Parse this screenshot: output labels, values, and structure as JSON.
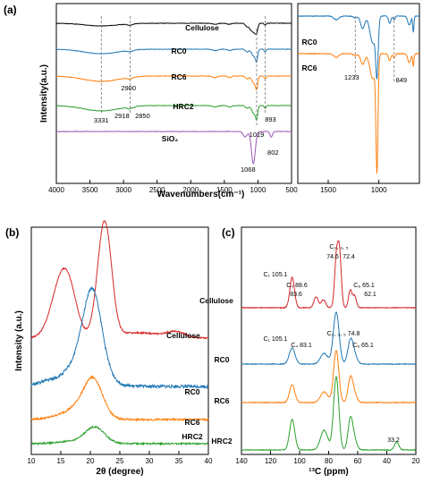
{
  "figure": {
    "panels": [
      {
        "id": "a",
        "label": "(a)",
        "xlabel": "Wavenumbers(cm⁻¹)",
        "ylabel": "Intensity(a.u.)",
        "series_labels": [
          "Cellulose",
          "RC0",
          "RC6",
          "HRC2",
          "SiO₂"
        ],
        "inset_series_labels": [
          "RC0",
          "RC6"
        ]
      },
      {
        "id": "b",
        "label": "(b)",
        "xlabel": "2θ (degree)",
        "ylabel": "Intensity (a.u.)",
        "series_labels": [
          "Cellulose",
          "RC0",
          "RC6",
          "HRC2"
        ]
      },
      {
        "id": "c",
        "label": "(c)",
        "xlabel": "¹³C (ppm)",
        "ylabel": "",
        "series_labels": [
          "Cellulose",
          "RC0",
          "RC6",
          "HRC2"
        ]
      }
    ]
  },
  "chart_data": [
    {
      "type": "line",
      "panel": "(a)",
      "xlabel": "Wavenumbers(cm⁻¹)",
      "ylabel": "Intensity(a.u.)",
      "xlim": [
        4000,
        500
      ],
      "xticks": [
        4000,
        3500,
        3000,
        2500,
        2000,
        1500,
        1000,
        500
      ],
      "inset": {
        "xlim": [
          1800,
          600
        ],
        "xticks": [
          1500,
          1000
        ],
        "series": [
          "RC0",
          "RC6"
        ],
        "annotations": [
          {
            "text": "1233",
            "x": 1233
          },
          {
            "text": "849",
            "x": 849
          }
        ]
      },
      "series": [
        {
          "name": "Cellulose",
          "color": "#000000",
          "bands": [
            3331,
            2900,
            1019
          ]
        },
        {
          "name": "RC0",
          "color": "#1f77b4",
          "bands": [
            3331,
            2900,
            1019,
            893
          ]
        },
        {
          "name": "RC6",
          "color": "#ff7f0e",
          "bands": [
            3331,
            2900,
            1019,
            893
          ]
        },
        {
          "name": "HRC2",
          "color": "#2ca02c",
          "bands": [
            3331,
            2918,
            2850,
            1019,
            893
          ]
        },
        {
          "name": "SiO₂",
          "color": "#9b59b6",
          "bands": [
            1068,
            802
          ]
        }
      ],
      "annotations": [
        {
          "text": "3331",
          "x": 3331
        },
        {
          "text": "2900",
          "x": 2900
        },
        {
          "text": "2918",
          "x": 2918
        },
        {
          "text": "2850",
          "x": 2850
        },
        {
          "text": "1019",
          "x": 1019
        },
        {
          "text": "893",
          "x": 893
        },
        {
          "text": "1068",
          "x": 1068
        },
        {
          "text": "802",
          "x": 802
        }
      ]
    },
    {
      "type": "line",
      "panel": "(b)",
      "xlabel": "2θ (degree)",
      "ylabel": "Intensity (a.u.)",
      "xlim": [
        10,
        40
      ],
      "xticks": [
        10,
        15,
        20,
        25,
        30,
        35,
        40
      ],
      "series": [
        {
          "name": "Cellulose",
          "color": "#d62728",
          "peaks": [
            15.0,
            22.6,
            34.5
          ]
        },
        {
          "name": "RC0",
          "color": "#1f77b4",
          "peaks": [
            20.4
          ]
        },
        {
          "name": "RC6",
          "color": "#ff7f0e",
          "peaks": [
            20.6
          ]
        },
        {
          "name": "HRC2",
          "color": "#2ca02c",
          "peaks": [
            20.8
          ]
        }
      ]
    },
    {
      "type": "line",
      "panel": "(c)",
      "xlabel": "¹³C (ppm)",
      "xlim": [
        140,
        20
      ],
      "xticks": [
        140,
        120,
        100,
        80,
        60,
        40,
        20
      ],
      "series": [
        {
          "name": "Cellulose",
          "color": "#d62728",
          "peaks": [
            105.1,
            88.6,
            83.6,
            74.6,
            72.4,
            65.1,
            62.1
          ]
        },
        {
          "name": "RC0",
          "color": "#1f77b4",
          "peaks": [
            105.1,
            83.1,
            74.8,
            65.1
          ]
        },
        {
          "name": "RC6",
          "color": "#ff7f0e",
          "peaks": [
            105.1,
            83.1,
            74.8,
            65.1
          ]
        },
        {
          "name": "HRC2",
          "color": "#2ca02c",
          "peaks": [
            105.1,
            83.1,
            74.8,
            65.1,
            33.2
          ]
        }
      ],
      "annotations": [
        {
          "text": "C₁ 105.1",
          "x": 105.1,
          "series": "Cellulose"
        },
        {
          "text": "C₄ 88.6",
          "x": 88.6,
          "series": "Cellulose"
        },
        {
          "text": "83.6",
          "x": 83.6,
          "series": "Cellulose"
        },
        {
          "text": "C₂, ₃, ₅",
          "x": 74.0,
          "series": "Cellulose"
        },
        {
          "text": "74.6",
          "x": 74.6,
          "series": "Cellulose"
        },
        {
          "text": "72.4",
          "x": 72.4,
          "series": "Cellulose"
        },
        {
          "text": "C₆ 65.1",
          "x": 65.1,
          "series": "Cellulose"
        },
        {
          "text": "62.1",
          "x": 62.1,
          "series": "Cellulose"
        },
        {
          "text": "C₂, ₃, ₅ 74.8",
          "x": 74.8,
          "series": "RC0"
        },
        {
          "text": "C₁ 105.1",
          "x": 105.1,
          "series": "RC0"
        },
        {
          "text": "C₄ 83.1",
          "x": 83.1,
          "series": "RC0"
        },
        {
          "text": "C₆ 65.1",
          "x": 65.1,
          "series": "RC0"
        },
        {
          "text": "33.2",
          "x": 33.2,
          "series": "HRC2"
        }
      ]
    }
  ]
}
